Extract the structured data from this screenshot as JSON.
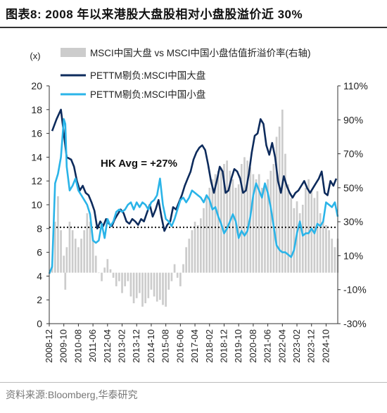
{
  "figure": {
    "title": "图表8:  2008 年以来港股大盘股相对小盘股溢价近 30%",
    "source": "资料来源:Bloomberg,华泰研究"
  },
  "chart_data": {
    "type": "line",
    "left_axis_unit": "(x)",
    "ylim_left": [
      0,
      20
    ],
    "yticks_left": [
      0,
      2,
      4,
      6,
      8,
      10,
      12,
      14,
      16,
      18,
      20
    ],
    "ylim_right": [
      -30,
      110
    ],
    "yticks_right": [
      "-30%",
      "-10%",
      "10%",
      "30%",
      "50%",
      "70%",
      "90%",
      "110%"
    ],
    "x_tick_labels": [
      "2008-12",
      "2009-10",
      "2010-08",
      "2011-06",
      "2012-04",
      "2013-02",
      "2013-12",
      "2014-10",
      "2015-08",
      "2016-06",
      "2017-04",
      "2018-02",
      "2018-12",
      "2019-10",
      "2020-08",
      "2021-06",
      "2022-04",
      "2023-02",
      "2023-12",
      "2024-10"
    ],
    "x_range": [
      "2008-12",
      "2025-06"
    ],
    "annotation": "HK Avg = +27%",
    "reference_line": {
      "axis": "left",
      "value": 8.1,
      "style": "dotted"
    },
    "legend_placement": "top",
    "grid": false,
    "colors": {
      "premium": "#cccccc",
      "large": "#0d2b5c",
      "small": "#2ab4e8"
    },
    "series": [
      {
        "name": "MSCI中国大盘 vs MSCI中国小盘估值折溢价率(右轴)",
        "type": "area",
        "axis": "right",
        "x": [
          "2008-12",
          "2009-02",
          "2009-04",
          "2009-06",
          "2009-08",
          "2009-10",
          "2009-11",
          "2009-12",
          "2010-02",
          "2010-04",
          "2010-06",
          "2010-08",
          "2010-10",
          "2010-12",
          "2011-02",
          "2011-04",
          "2011-06",
          "2011-08",
          "2011-10",
          "2011-12",
          "2012-02",
          "2012-04",
          "2012-06",
          "2012-08",
          "2012-10",
          "2012-12",
          "2013-02",
          "2013-04",
          "2013-06",
          "2013-08",
          "2013-10",
          "2013-12",
          "2014-02",
          "2014-04",
          "2014-06",
          "2014-08",
          "2014-10",
          "2014-12",
          "2015-02",
          "2015-04",
          "2015-06",
          "2015-08",
          "2015-10",
          "2015-12",
          "2016-02",
          "2016-04",
          "2016-06",
          "2016-08",
          "2016-10",
          "2016-12",
          "2017-02",
          "2017-04",
          "2017-06",
          "2017-08",
          "2017-10",
          "2017-12",
          "2018-02",
          "2018-04",
          "2018-06",
          "2018-08",
          "2018-10",
          "2018-12",
          "2019-02",
          "2019-04",
          "2019-06",
          "2019-08",
          "2019-10",
          "2019-12",
          "2020-02",
          "2020-04",
          "2020-06",
          "2020-08",
          "2020-10",
          "2020-12",
          "2021-02",
          "2021-04",
          "2021-06",
          "2021-08",
          "2021-10",
          "2021-12",
          "2022-02",
          "2022-04",
          "2022-06",
          "2022-08",
          "2022-10",
          "2022-12",
          "2023-02",
          "2023-04",
          "2023-06",
          "2023-08",
          "2023-10",
          "2023-12",
          "2024-02",
          "2024-04",
          "2024-06",
          "2024-08",
          "2024-10",
          "2024-12",
          "2025-02",
          "2025-04",
          "2025-06"
        ],
        "values": [
          0,
          5,
          30,
          45,
          25,
          10,
          -10,
          15,
          30,
          25,
          20,
          15,
          20,
          25,
          35,
          30,
          20,
          10,
          0,
          -5,
          3,
          8,
          2,
          -3,
          -8,
          -5,
          -12,
          -8,
          -5,
          -14,
          -18,
          -15,
          -12,
          -20,
          -18,
          -15,
          -10,
          -14,
          -17,
          -16,
          -19,
          -20,
          -10,
          -5,
          5,
          -3,
          -8,
          5,
          15,
          20,
          25,
          30,
          28,
          32,
          38,
          45,
          50,
          55,
          58,
          60,
          62,
          64,
          66,
          60,
          55,
          50,
          52,
          64,
          68,
          66,
          62,
          58,
          55,
          58,
          50,
          52,
          55,
          60,
          64,
          80,
          86,
          96,
          70,
          52,
          44,
          38,
          42,
          35,
          40,
          50,
          55,
          48,
          44,
          48,
          35,
          30,
          28,
          25,
          20,
          15,
          20
        ]
      },
      {
        "name": "PETTM剔负:MSCI中国大盘",
        "type": "line",
        "axis": "left",
        "x": [
          "2009-02",
          "2009-05",
          "2009-08",
          "2009-10",
          "2009-12",
          "2010-03",
          "2010-05",
          "2010-07",
          "2010-09",
          "2010-11",
          "2011-01",
          "2011-03",
          "2011-05",
          "2011-07",
          "2011-09",
          "2011-11",
          "2012-01",
          "2012-03",
          "2012-05",
          "2012-07",
          "2012-09",
          "2012-11",
          "2013-01",
          "2013-03",
          "2013-05",
          "2013-07",
          "2013-09",
          "2013-11",
          "2014-01",
          "2014-03",
          "2014-05",
          "2014-07",
          "2014-09",
          "2014-11",
          "2015-01",
          "2015-03",
          "2015-05",
          "2015-07",
          "2015-09",
          "2015-11",
          "2016-01",
          "2016-03",
          "2016-05",
          "2016-07",
          "2016-09",
          "2016-11",
          "2017-01",
          "2017-03",
          "2017-05",
          "2017-07",
          "2017-09",
          "2017-11",
          "2018-01",
          "2018-03",
          "2018-05",
          "2018-07",
          "2018-09",
          "2018-11",
          "2019-01",
          "2019-03",
          "2019-05",
          "2019-07",
          "2019-09",
          "2019-11",
          "2020-01",
          "2020-03",
          "2020-05",
          "2020-07",
          "2020-09",
          "2020-11",
          "2021-01",
          "2021-03",
          "2021-05",
          "2021-07",
          "2021-09",
          "2021-11",
          "2022-01",
          "2022-03",
          "2022-05",
          "2022-07",
          "2022-09",
          "2022-11",
          "2023-01",
          "2023-03",
          "2023-05",
          "2023-07",
          "2023-09",
          "2023-11",
          "2024-01",
          "2024-03",
          "2024-05",
          "2024-07",
          "2024-09",
          "2024-11",
          "2025-01",
          "2025-03",
          "2025-05"
        ],
        "values": [
          16.2,
          17.2,
          18.0,
          16.0,
          14.0,
          13.8,
          13.2,
          12.0,
          11.2,
          11.6,
          11.0,
          10.8,
          10.2,
          9.5,
          8.0,
          8.6,
          8.2,
          8.8,
          8.4,
          8.2,
          8.8,
          9.2,
          9.6,
          9.3,
          8.6,
          8.4,
          8.8,
          8.6,
          8.3,
          8.8,
          8.6,
          9.3,
          10.0,
          9.0,
          9.6,
          10.4,
          9.0,
          7.8,
          8.3,
          8.6,
          9.8,
          9.6,
          10.2,
          10.8,
          11.6,
          12.2,
          12.8,
          13.8,
          14.4,
          14.8,
          15.0,
          14.6,
          13.4,
          12.0,
          11.0,
          12.0,
          13.2,
          12.8,
          11.0,
          11.2,
          12.2,
          13.0,
          12.8,
          12.2,
          11.0,
          11.2,
          12.6,
          14.4,
          15.8,
          16.0,
          17.2,
          16.8,
          15.0,
          14.2,
          15.2,
          14.0,
          12.0,
          11.0,
          12.4,
          11.6,
          11.0,
          10.6,
          11.0,
          11.2,
          11.6,
          12.0,
          11.4,
          11.0,
          11.4,
          11.8,
          12.2,
          12.8,
          11.0,
          10.8,
          12.0,
          11.6,
          12.2
        ]
      },
      {
        "name": "PETTM剔负:MSCI中国小盘",
        "type": "line",
        "axis": "left",
        "x": [
          "2008-12",
          "2009-02",
          "2009-04",
          "2009-06",
          "2009-08",
          "2009-10",
          "2009-11",
          "2009-12",
          "2010-02",
          "2010-04",
          "2010-06",
          "2010-08",
          "2010-10",
          "2010-12",
          "2011-02",
          "2011-04",
          "2011-06",
          "2011-08",
          "2011-10",
          "2011-12",
          "2012-02",
          "2012-04",
          "2012-06",
          "2012-08",
          "2012-10",
          "2012-12",
          "2013-02",
          "2013-04",
          "2013-06",
          "2013-08",
          "2013-10",
          "2013-12",
          "2014-02",
          "2014-04",
          "2014-06",
          "2014-08",
          "2014-10",
          "2014-12",
          "2015-02",
          "2015-04",
          "2015-06",
          "2015-08",
          "2015-10",
          "2015-12",
          "2016-02",
          "2016-04",
          "2016-06",
          "2016-08",
          "2016-10",
          "2016-12",
          "2017-02",
          "2017-04",
          "2017-06",
          "2017-08",
          "2017-10",
          "2017-12",
          "2018-02",
          "2018-04",
          "2018-06",
          "2018-08",
          "2018-10",
          "2018-12",
          "2019-02",
          "2019-04",
          "2019-06",
          "2019-08",
          "2019-10",
          "2019-12",
          "2020-02",
          "2020-04",
          "2020-06",
          "2020-08",
          "2020-10",
          "2020-12",
          "2021-02",
          "2021-04",
          "2021-06",
          "2021-08",
          "2021-10",
          "2021-12",
          "2022-02",
          "2022-04",
          "2022-06",
          "2022-08",
          "2022-10",
          "2022-12",
          "2023-02",
          "2023-04",
          "2023-06",
          "2023-08",
          "2023-10",
          "2023-12",
          "2024-02",
          "2024-04",
          "2024-06",
          "2024-08",
          "2024-10",
          "2024-12",
          "2025-02",
          "2025-04",
          "2025-06"
        ],
        "values": [
          4.2,
          4.8,
          11.8,
          12.6,
          14.0,
          17.2,
          16.8,
          13.2,
          11.2,
          11.6,
          12.2,
          11.2,
          10.8,
          10.4,
          10.0,
          9.2,
          7.0,
          6.8,
          7.0,
          8.4,
          7.2,
          8.8,
          8.2,
          8.6,
          9.4,
          9.6,
          9.4,
          9.6,
          10.0,
          10.2,
          9.6,
          10.2,
          9.8,
          10.2,
          10.0,
          9.6,
          10.2,
          10.4,
          10.8,
          12.2,
          10.0,
          8.8,
          8.6,
          8.2,
          8.8,
          9.6,
          10.4,
          10.6,
          10.2,
          10.6,
          11.2,
          11.0,
          10.8,
          10.6,
          10.2,
          10.8,
          10.4,
          9.6,
          9.8,
          9.0,
          8.4,
          7.6,
          8.0,
          8.6,
          9.2,
          8.6,
          7.2,
          7.8,
          7.4,
          7.8,
          9.0,
          10.8,
          11.8,
          11.2,
          10.6,
          11.8,
          11.0,
          9.8,
          8.2,
          6.6,
          6.2,
          6.0,
          6.0,
          5.8,
          5.6,
          6.2,
          7.6,
          8.6,
          7.4,
          7.6,
          7.6,
          8.0,
          7.6,
          8.4,
          8.2,
          8.6,
          10.2,
          10.0,
          9.8,
          10.2,
          9.0
        ]
      }
    ]
  }
}
